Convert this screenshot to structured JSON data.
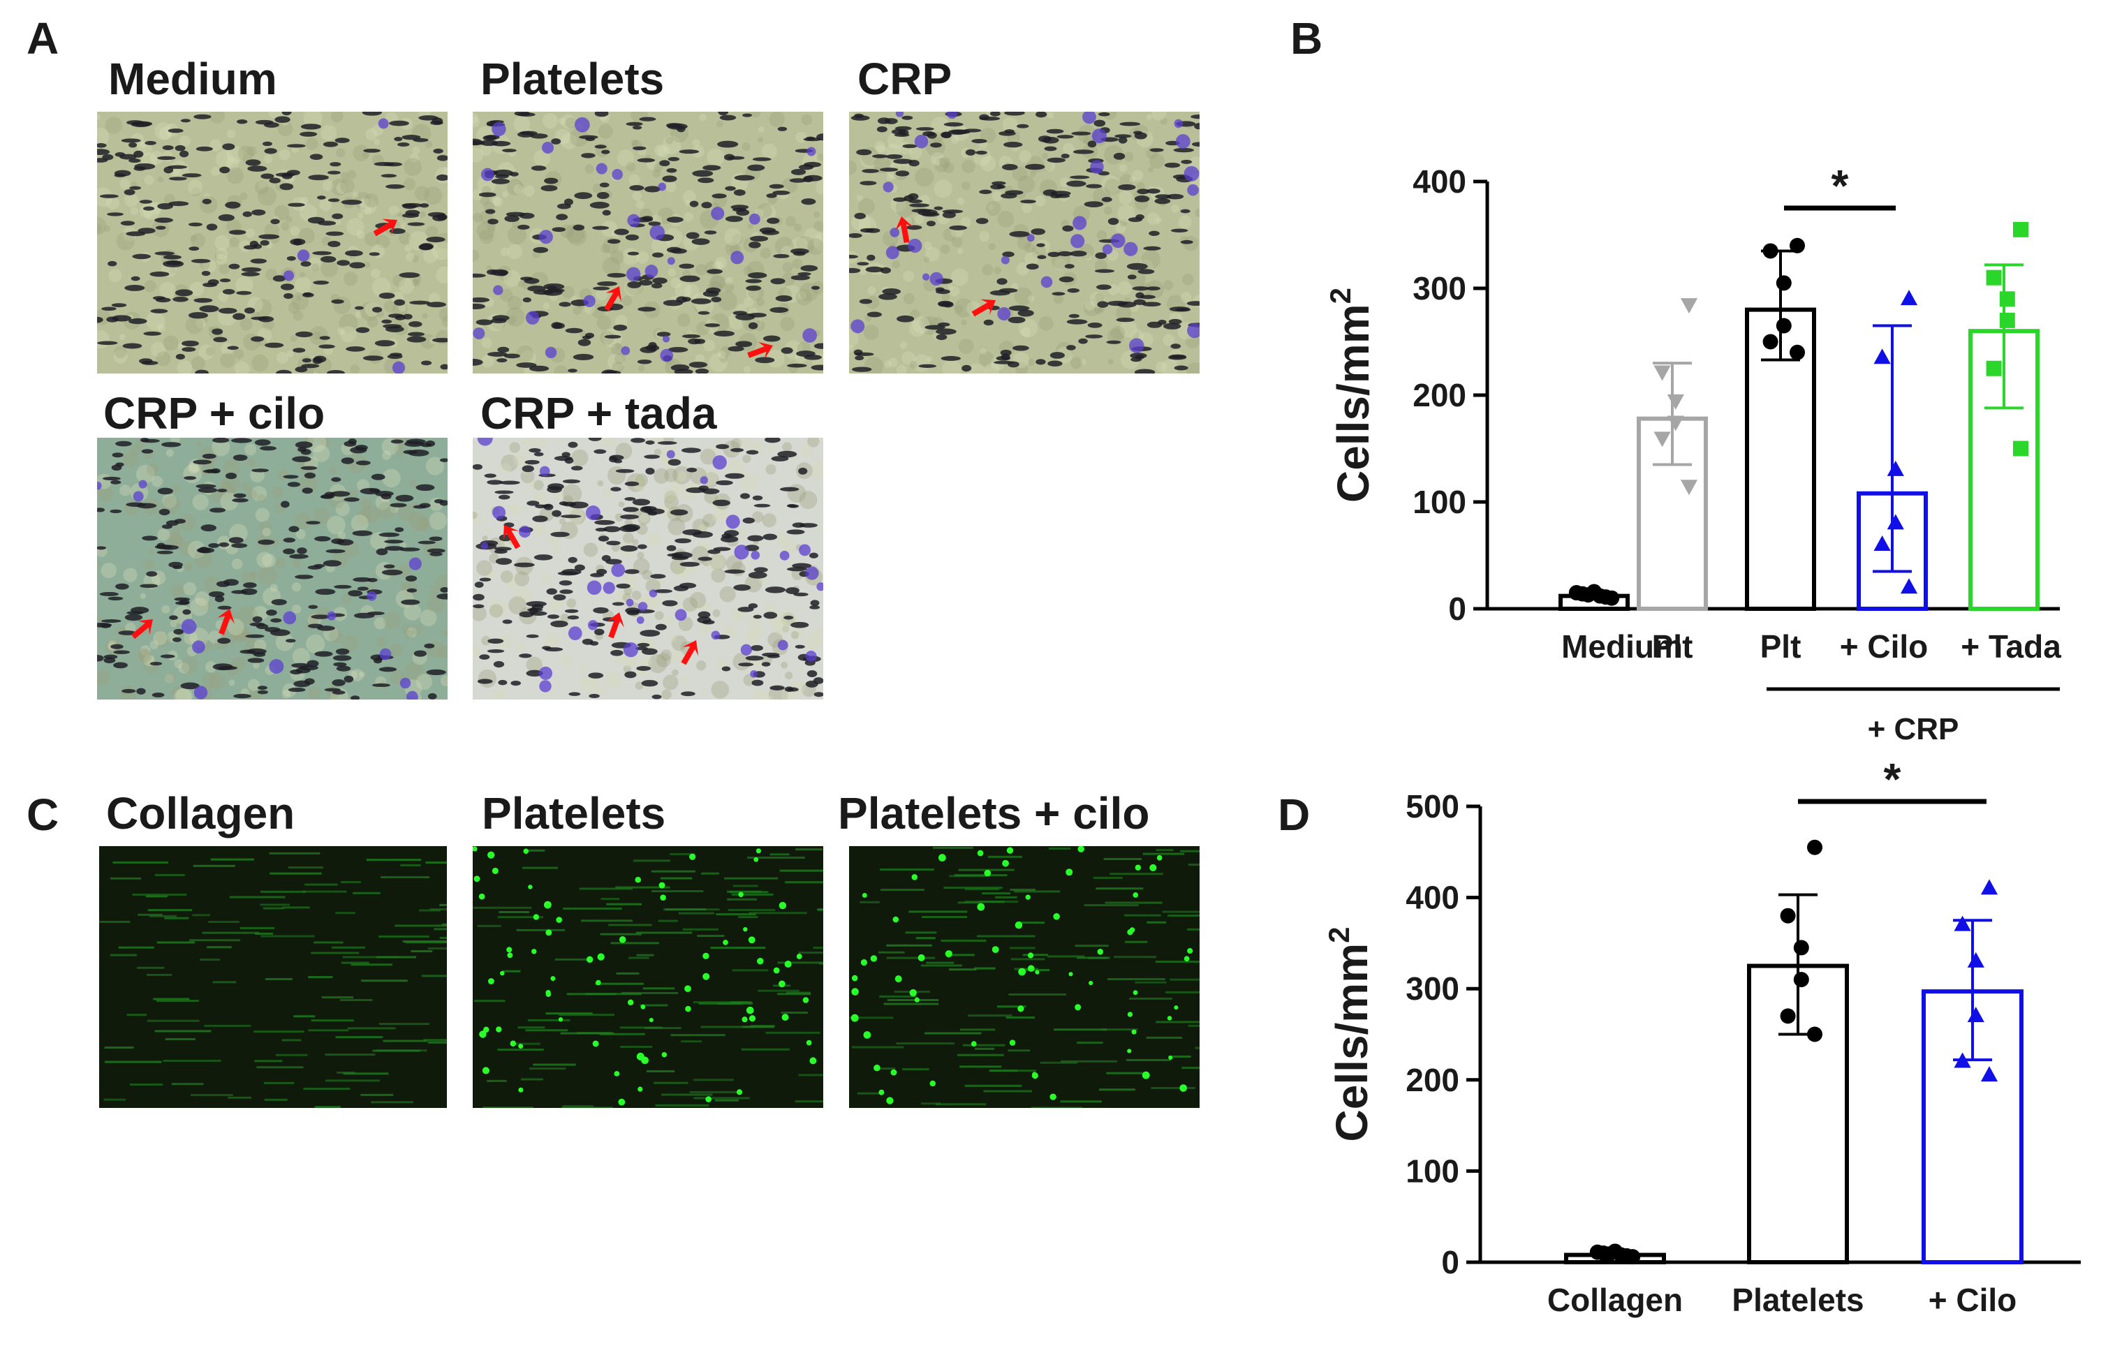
{
  "panels": {
    "a_letter": "A",
    "b_letter": "B",
    "c_letter": "C",
    "d_letter": "D"
  },
  "panel_a": {
    "titles": [
      "Medium",
      "Platelets",
      "CRP",
      "CRP + cilo",
      "CRP + tada"
    ]
  },
  "panel_c": {
    "titles": [
      "Collagen",
      "Platelets",
      "Platelets + cilo"
    ]
  },
  "colors": {
    "stain_background": "#b9bf98",
    "stain_background_cilo": "#8fae9a",
    "stain_background_tada": "#d6d8d2",
    "cell_stain": "#5b3fd0",
    "arrow": "#ff1010",
    "fluor_background": "#0f1a0a",
    "fluor_cell": "#29ff29",
    "plt_gray": "#a6a6a6",
    "cilo_blue": "#1010e6",
    "tada_green": "#2bd62b",
    "black": "#000000"
  },
  "chart_data": [
    {
      "type": "bar",
      "panel": "B",
      "ylabel": "Cells/mm",
      "ylabel_sup": "2",
      "ylim": [
        0,
        400
      ],
      "yticks": [
        0,
        100,
        200,
        300,
        400
      ],
      "categories": [
        "Medium",
        "Plt",
        "Plt",
        "+ Cilo",
        "+ Tada"
      ],
      "group_label": "+ CRP",
      "significance": "*",
      "series": [
        {
          "category": "Medium",
          "mean": 12,
          "sd_low": 12,
          "sd_high": 12,
          "marker": "circle",
          "color": "#000000",
          "points": [
            10,
            14,
            12,
            16,
            13,
            11,
            15
          ]
        },
        {
          "category": "Plt",
          "mean": 178,
          "sd_low": 135,
          "sd_high": 230,
          "marker": "triangle-down",
          "color": "#a6a6a6",
          "points": [
            285,
            222,
            195,
            175,
            160,
            115
          ]
        },
        {
          "category": "Plt",
          "mean": 280,
          "sd_low": 233,
          "sd_high": 335,
          "marker": "circle",
          "color": "#000000",
          "points": [
            340,
            335,
            305,
            265,
            250,
            240
          ]
        },
        {
          "category": "+ Cilo",
          "mean": 108,
          "sd_low": 35,
          "sd_high": 265,
          "marker": "triangle-up",
          "color": "#1010e6",
          "points": [
            290,
            235,
            130,
            80,
            60,
            20
          ]
        },
        {
          "category": "+ Tada",
          "mean": 260,
          "sd_low": 188,
          "sd_high": 322,
          "marker": "square",
          "color": "#2bd62b",
          "points": [
            355,
            310,
            290,
            270,
            225,
            150
          ]
        }
      ]
    },
    {
      "type": "bar",
      "panel": "D",
      "ylabel": "Cells/mm",
      "ylabel_sup": "2",
      "ylim": [
        0,
        500
      ],
      "yticks": [
        0,
        100,
        200,
        300,
        400,
        500
      ],
      "categories": [
        "Collagen",
        "Platelets",
        "+ Cilo"
      ],
      "significance": "*",
      "series": [
        {
          "category": "Collagen",
          "mean": 8,
          "sd_low": 8,
          "sd_high": 8,
          "marker": "circle",
          "color": "#000000",
          "points": [
            6,
            10,
            8,
            12,
            9,
            7,
            11
          ]
        },
        {
          "category": "Platelets",
          "mean": 325,
          "sd_low": 250,
          "sd_high": 403,
          "marker": "circle",
          "color": "#000000",
          "points": [
            455,
            380,
            345,
            310,
            270,
            250
          ]
        },
        {
          "category": "+ Cilo",
          "mean": 297,
          "sd_low": 222,
          "sd_high": 375,
          "marker": "triangle-up",
          "color": "#1010e6",
          "points": [
            410,
            370,
            330,
            270,
            220,
            205
          ]
        }
      ]
    }
  ]
}
